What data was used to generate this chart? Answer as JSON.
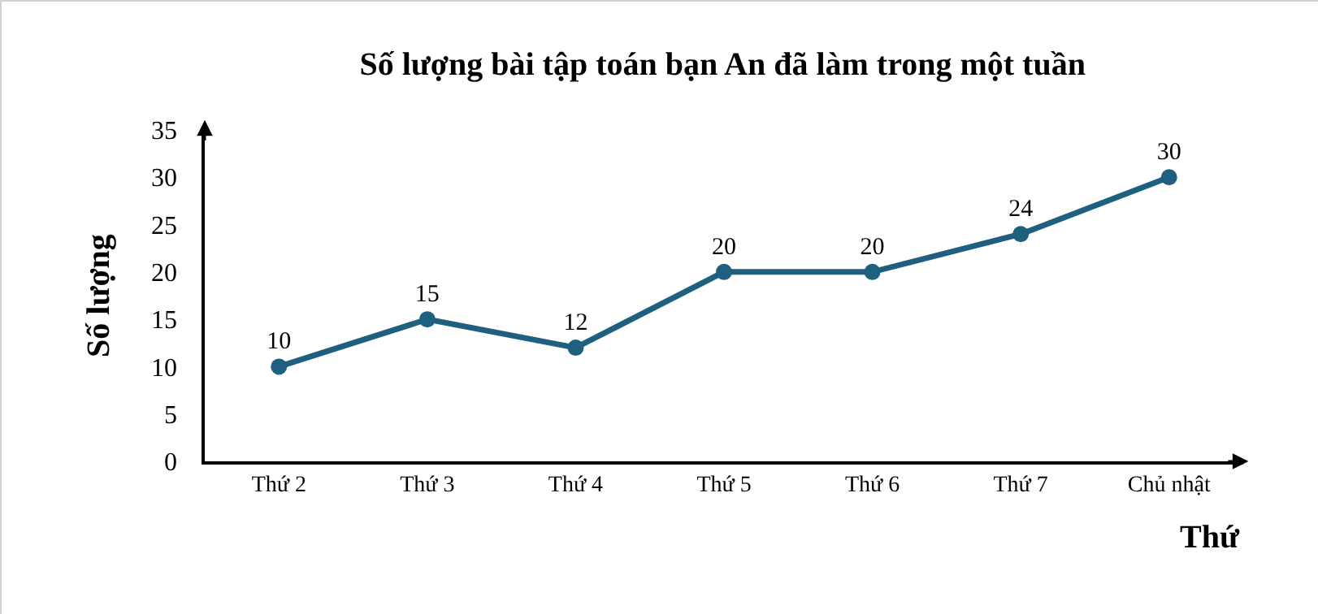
{
  "chart_data": {
    "type": "line",
    "title": "Số lượng bài tập toán bạn An đã làm trong một tuần",
    "xlabel": "Thứ",
    "ylabel": "Số lượng",
    "categories": [
      "Thứ 2",
      "Thứ 3",
      "Thứ 4",
      "Thứ 5",
      "Thứ 6",
      "Thứ 7",
      "Chủ nhật"
    ],
    "series": [
      {
        "color": "#1f5f7f",
        "values": [
          10,
          15,
          12,
          20,
          20,
          24,
          30
        ]
      }
    ],
    "ylim": [
      0,
      35
    ],
    "yticks": [
      0,
      5,
      10,
      15,
      20,
      25,
      30,
      35
    ],
    "grid": false,
    "marker": "circle",
    "line_style": "solid",
    "data_labels": true
  }
}
